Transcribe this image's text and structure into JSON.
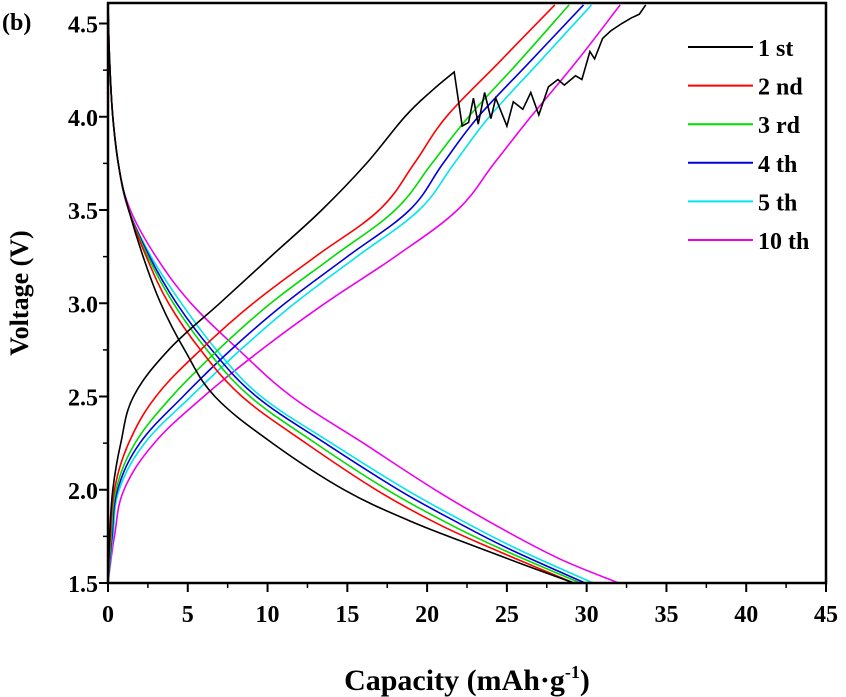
{
  "panel_label": "(b)",
  "chart_data": {
    "type": "line",
    "xlabel": "Capacity (mAh·g",
    "xlabel_sup": "-1",
    "xlabel_end": ")",
    "ylabel": "Voltage (V)",
    "xlim": [
      0,
      45
    ],
    "ylim": [
      1.5,
      4.61
    ],
    "xticks": [
      "0",
      "5",
      "10",
      "15",
      "20",
      "25",
      "30",
      "35",
      "40",
      "45"
    ],
    "yticks": [
      "1.5",
      "2.0",
      "2.5",
      "3.0",
      "3.5",
      "4.0",
      "4.5"
    ],
    "grid": false,
    "legend_position": "top-right",
    "series": [
      {
        "name": "1 st",
        "color": "#000000",
        "charge": [
          [
            0,
            1.5
          ],
          [
            0.1,
            1.75
          ],
          [
            0.3,
            2.0
          ],
          [
            0.8,
            2.25
          ],
          [
            1.6,
            2.5
          ],
          [
            3.8,
            2.75
          ],
          [
            7.0,
            3.0
          ],
          [
            10.2,
            3.25
          ],
          [
            13.4,
            3.5
          ],
          [
            16.2,
            3.75
          ],
          [
            18.6,
            4.0
          ],
          [
            20.3,
            4.14
          ],
          [
            21.7,
            4.24
          ],
          [
            22.2,
            3.95
          ],
          [
            22.6,
            3.97
          ],
          [
            22.9,
            4.1
          ],
          [
            23.2,
            3.96
          ],
          [
            23.6,
            4.13
          ],
          [
            24.0,
            3.99
          ],
          [
            24.3,
            4.1
          ],
          [
            25.0,
            3.95
          ],
          [
            25.4,
            4.08
          ],
          [
            26.0,
            4.04
          ],
          [
            26.5,
            4.13
          ],
          [
            27.0,
            4.01
          ],
          [
            27.6,
            4.16
          ],
          [
            28.2,
            4.2
          ],
          [
            28.6,
            4.17
          ],
          [
            29.3,
            4.22
          ],
          [
            29.7,
            4.2
          ],
          [
            30.2,
            4.35
          ],
          [
            30.5,
            4.31
          ],
          [
            31.0,
            4.42
          ],
          [
            31.5,
            4.46
          ],
          [
            32.2,
            4.5
          ],
          [
            32.8,
            4.53
          ],
          [
            33.3,
            4.55
          ],
          [
            33.7,
            4.6
          ]
        ],
        "discharge": [
          [
            0,
            4.6
          ],
          [
            0.1,
            4.3
          ],
          [
            0.3,
            4.0
          ],
          [
            0.7,
            3.72
          ],
          [
            1.3,
            3.5
          ],
          [
            2.2,
            3.25
          ],
          [
            3.3,
            3.0
          ],
          [
            4.8,
            2.75
          ],
          [
            6.7,
            2.5
          ],
          [
            10.3,
            2.25
          ],
          [
            14.8,
            2.0
          ],
          [
            19.0,
            1.83
          ],
          [
            22.9,
            1.7
          ],
          [
            26.0,
            1.6
          ],
          [
            29.2,
            1.5
          ]
        ]
      },
      {
        "name": "2 nd",
        "color": "#ff0000",
        "charge": [
          [
            0,
            1.5
          ],
          [
            0.15,
            1.75
          ],
          [
            0.4,
            2.0
          ],
          [
            1.3,
            2.25
          ],
          [
            3.0,
            2.5
          ],
          [
            5.8,
            2.75
          ],
          [
            9.1,
            3.0
          ],
          [
            13.0,
            3.25
          ],
          [
            17.0,
            3.5
          ],
          [
            19.2,
            3.75
          ],
          [
            21.2,
            4.0
          ],
          [
            24.6,
            4.3
          ],
          [
            28.0,
            4.6
          ]
        ],
        "discharge": [
          [
            0,
            4.6
          ],
          [
            0.1,
            4.3
          ],
          [
            0.3,
            4.0
          ],
          [
            0.7,
            3.72
          ],
          [
            1.3,
            3.5
          ],
          [
            2.4,
            3.25
          ],
          [
            3.8,
            3.0
          ],
          [
            5.8,
            2.75
          ],
          [
            8.4,
            2.5
          ],
          [
            12.4,
            2.25
          ],
          [
            16.8,
            2.0
          ],
          [
            20.6,
            1.82
          ],
          [
            24.2,
            1.68
          ],
          [
            29.2,
            1.5
          ]
        ]
      },
      {
        "name": "3 rd",
        "color": "#00dd00",
        "charge": [
          [
            0,
            1.5
          ],
          [
            0.2,
            1.75
          ],
          [
            0.5,
            2.0
          ],
          [
            1.7,
            2.25
          ],
          [
            4.0,
            2.5
          ],
          [
            6.9,
            2.75
          ],
          [
            10.2,
            3.0
          ],
          [
            14.1,
            3.25
          ],
          [
            18.0,
            3.5
          ],
          [
            20.3,
            3.75
          ],
          [
            22.6,
            4.0
          ],
          [
            25.8,
            4.3
          ],
          [
            28.9,
            4.6
          ]
        ],
        "discharge": [
          [
            0,
            4.6
          ],
          [
            0.1,
            4.3
          ],
          [
            0.3,
            4.0
          ],
          [
            0.7,
            3.72
          ],
          [
            1.3,
            3.5
          ],
          [
            2.5,
            3.25
          ],
          [
            4.1,
            3.0
          ],
          [
            6.2,
            2.75
          ],
          [
            8.9,
            2.5
          ],
          [
            13.0,
            2.25
          ],
          [
            17.5,
            2.0
          ],
          [
            21.3,
            1.82
          ],
          [
            24.7,
            1.68
          ],
          [
            29.6,
            1.5
          ]
        ]
      },
      {
        "name": "4 th",
        "color": "#0000dd",
        "charge": [
          [
            0,
            1.5
          ],
          [
            0.25,
            1.75
          ],
          [
            0.6,
            2.0
          ],
          [
            2.0,
            2.25
          ],
          [
            4.7,
            2.5
          ],
          [
            7.7,
            2.75
          ],
          [
            11.1,
            3.0
          ],
          [
            15.0,
            3.25
          ],
          [
            18.9,
            3.5
          ],
          [
            21.0,
            3.75
          ],
          [
            23.2,
            4.0
          ],
          [
            26.5,
            4.3
          ],
          [
            29.8,
            4.6
          ]
        ],
        "discharge": [
          [
            0,
            4.6
          ],
          [
            0.1,
            4.3
          ],
          [
            0.3,
            4.0
          ],
          [
            0.7,
            3.72
          ],
          [
            1.3,
            3.5
          ],
          [
            2.6,
            3.25
          ],
          [
            4.3,
            3.0
          ],
          [
            6.5,
            2.75
          ],
          [
            9.3,
            2.5
          ],
          [
            13.6,
            2.25
          ],
          [
            18.2,
            2.0
          ],
          [
            22.0,
            1.82
          ],
          [
            25.2,
            1.68
          ],
          [
            29.9,
            1.5
          ]
        ]
      },
      {
        "name": "5 th",
        "color": "#00e5ee",
        "charge": [
          [
            0,
            1.5
          ],
          [
            0.3,
            1.75
          ],
          [
            0.7,
            2.0
          ],
          [
            2.3,
            2.25
          ],
          [
            5.2,
            2.5
          ],
          [
            8.3,
            2.75
          ],
          [
            11.7,
            3.0
          ],
          [
            15.6,
            3.25
          ],
          [
            19.5,
            3.5
          ],
          [
            21.7,
            3.75
          ],
          [
            23.9,
            4.0
          ],
          [
            27.1,
            4.3
          ],
          [
            30.3,
            4.6
          ]
        ],
        "discharge": [
          [
            0,
            4.6
          ],
          [
            0.1,
            4.3
          ],
          [
            0.3,
            4.0
          ],
          [
            0.7,
            3.72
          ],
          [
            1.3,
            3.5
          ],
          [
            2.7,
            3.25
          ],
          [
            4.6,
            3.0
          ],
          [
            6.8,
            2.75
          ],
          [
            9.6,
            2.5
          ],
          [
            14.0,
            2.25
          ],
          [
            18.7,
            2.0
          ],
          [
            22.5,
            1.82
          ],
          [
            25.7,
            1.68
          ],
          [
            30.4,
            1.5
          ]
        ]
      },
      {
        "name": "10 th",
        "color": "#ee00ee",
        "charge": [
          [
            0,
            1.5
          ],
          [
            0.4,
            1.75
          ],
          [
            1.0,
            2.0
          ],
          [
            2.9,
            2.25
          ],
          [
            6.0,
            2.5
          ],
          [
            9.6,
            2.75
          ],
          [
            13.6,
            3.0
          ],
          [
            18.0,
            3.25
          ],
          [
            21.9,
            3.5
          ],
          [
            24.2,
            3.75
          ],
          [
            26.5,
            4.0
          ],
          [
            29.4,
            4.3
          ],
          [
            32.1,
            4.6
          ]
        ],
        "discharge": [
          [
            0,
            4.6
          ],
          [
            0.1,
            4.3
          ],
          [
            0.3,
            4.0
          ],
          [
            0.7,
            3.72
          ],
          [
            1.4,
            3.5
          ],
          [
            3.0,
            3.25
          ],
          [
            5.2,
            3.0
          ],
          [
            8.2,
            2.75
          ],
          [
            11.5,
            2.5
          ],
          [
            16.0,
            2.25
          ],
          [
            20.5,
            2.0
          ],
          [
            24.5,
            1.8
          ],
          [
            28.3,
            1.63
          ],
          [
            32.0,
            1.5
          ]
        ]
      }
    ]
  }
}
